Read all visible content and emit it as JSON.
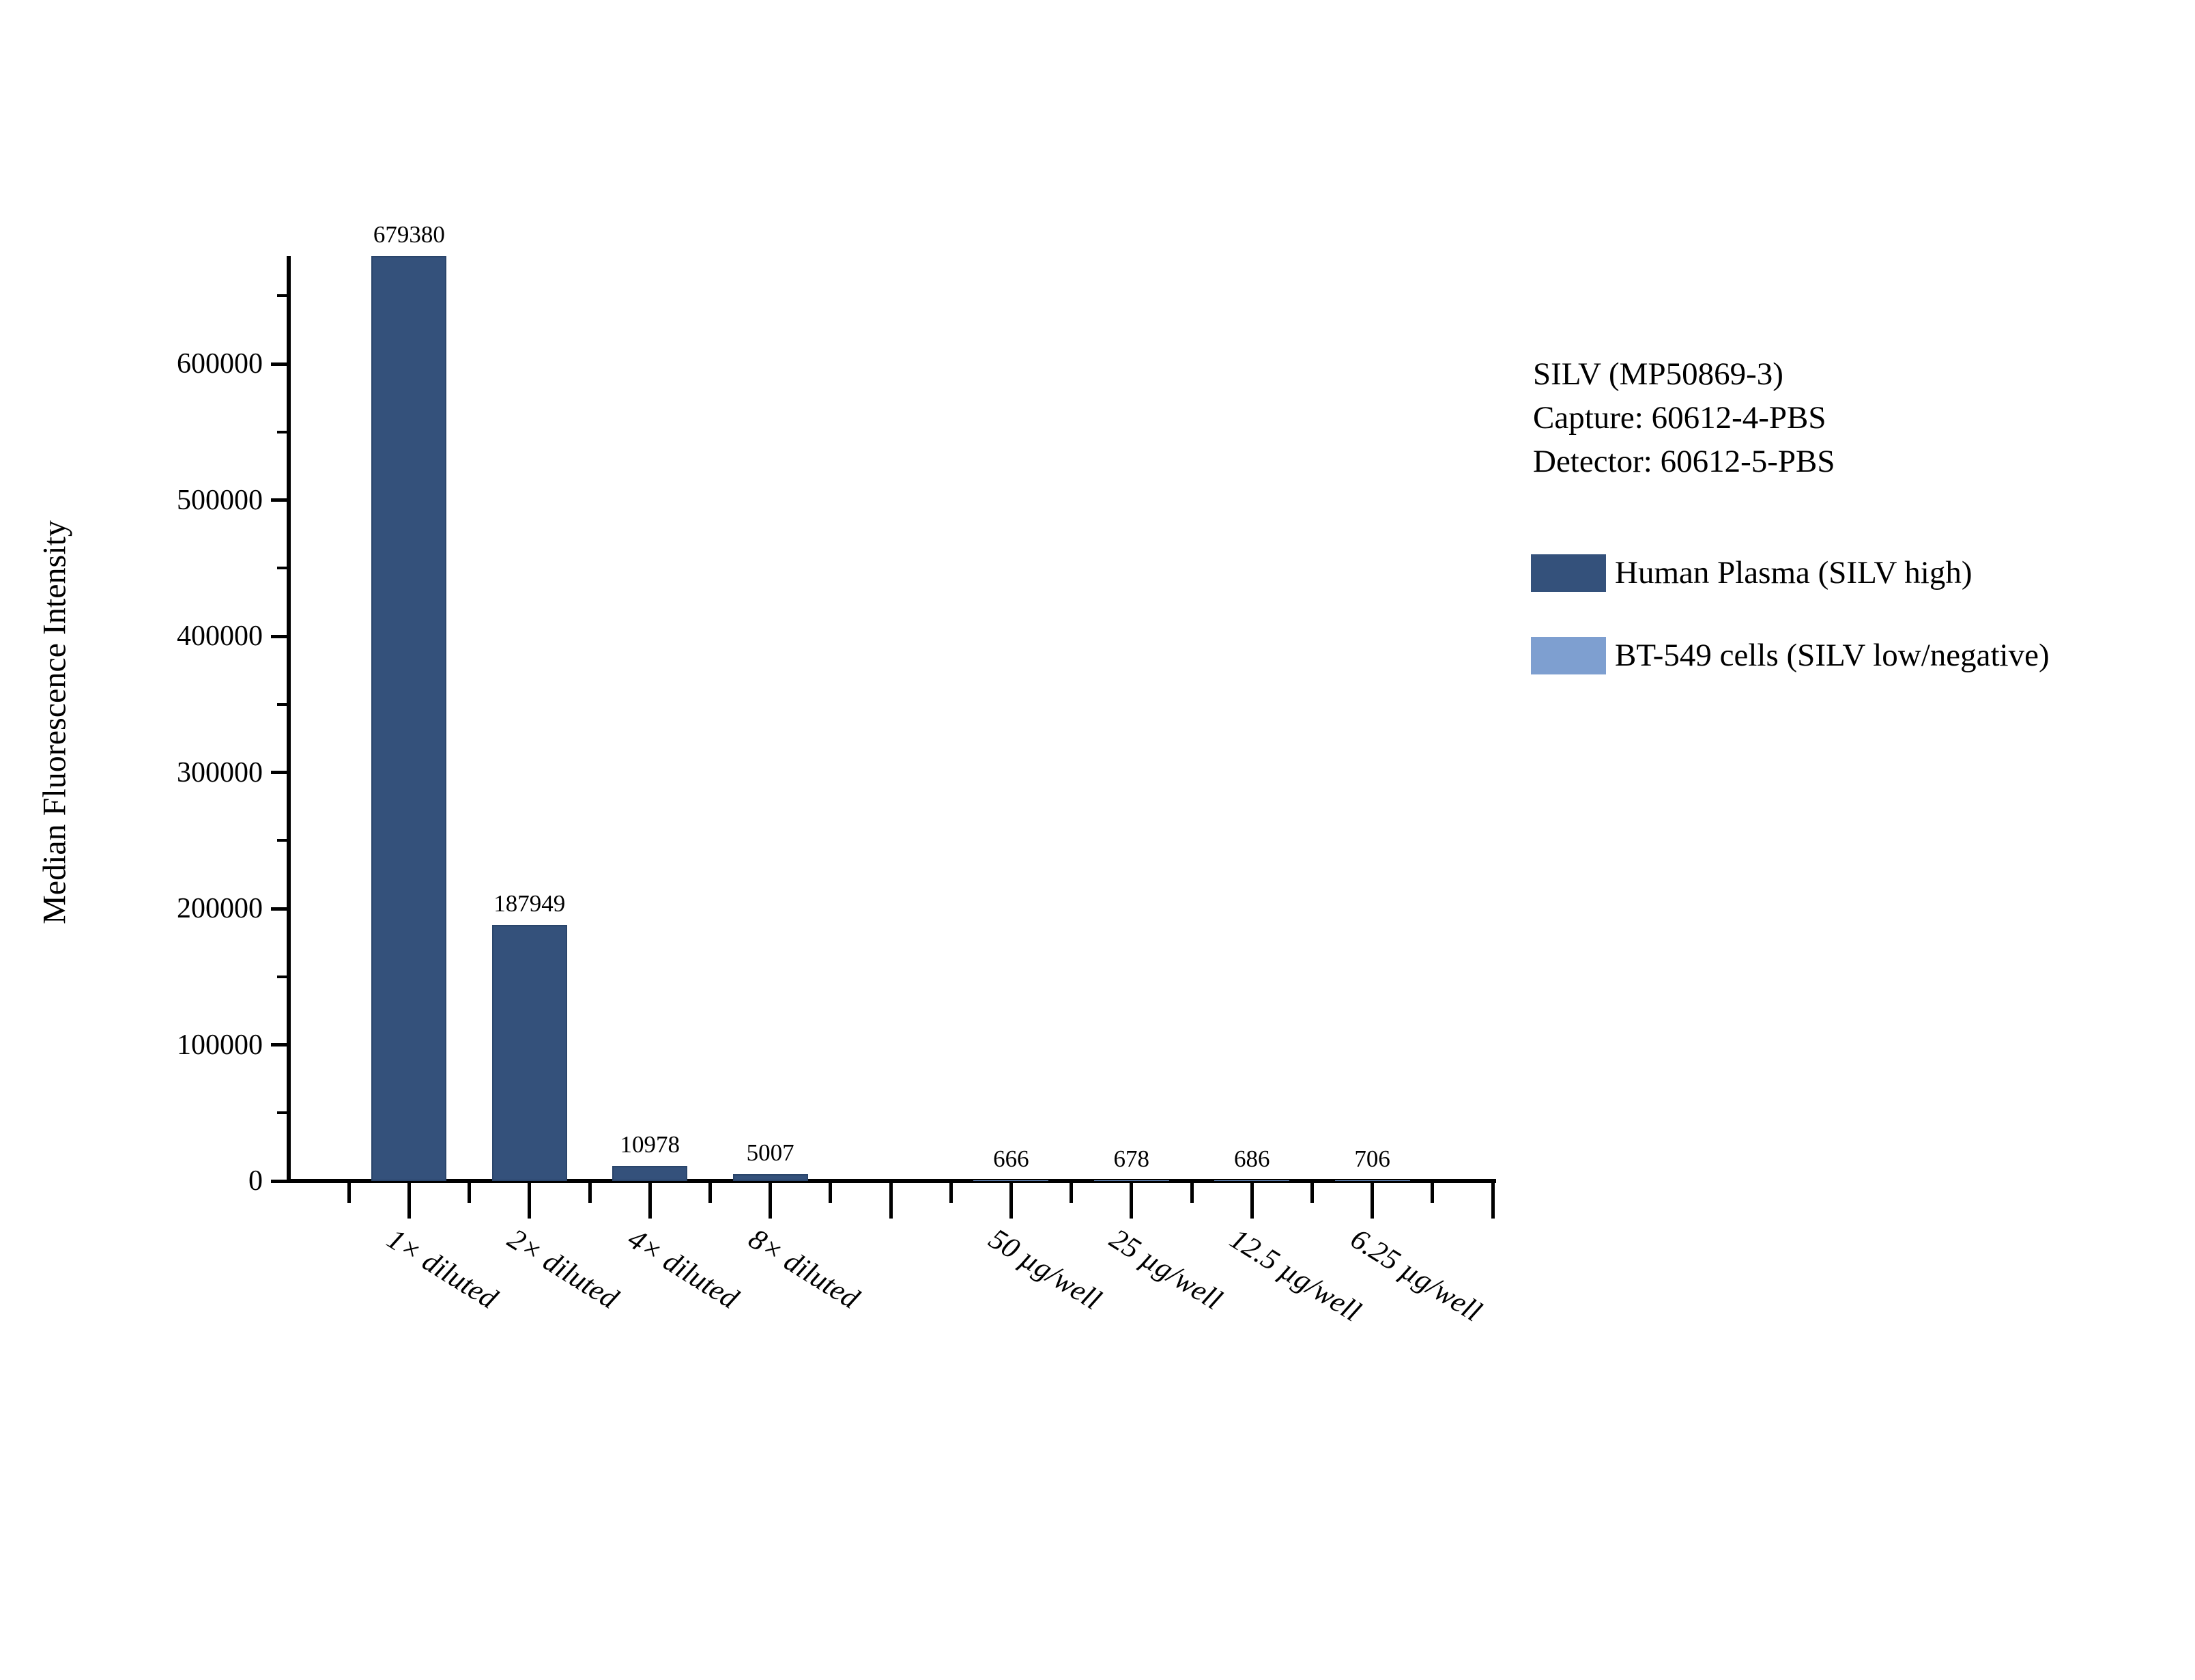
{
  "annotation": {
    "line1": "SILV (MP50869-3)",
    "line2": "Capture: 60612-4-PBS",
    "line3": "Detector: 60612-5-PBS"
  },
  "chart_data": {
    "type": "bar",
    "title": "",
    "xlabel": "",
    "ylabel": "Median Fluorescence Intensity",
    "ylim": [
      0,
      680000
    ],
    "ymajor_ticks": [
      0,
      100000,
      200000,
      300000,
      400000,
      500000,
      600000
    ],
    "yminor_ticks": [
      50000,
      150000,
      250000,
      350000,
      450000,
      550000,
      650000
    ],
    "grid": false,
    "legend_position": "right",
    "bar_value_labels_shown": true,
    "gap_slots_between_series": 1,
    "series": [
      {
        "name": "Human Plasma (SILV high)",
        "color": "#34517B",
        "edge_color": "#2A456B",
        "categories": [
          "1× diluted",
          "2× diluted",
          "4× diluted",
          "8× diluted"
        ],
        "values": [
          679380,
          187949,
          10978,
          5007
        ]
      },
      {
        "name": "BT-549 cells (SILV low/negative)",
        "color": "#7E9FD0",
        "edge_color": "#6A8FC4",
        "categories": [
          "50 µg/well",
          "25 µg/well",
          "12.5 µg/well",
          "6.25 µg/well"
        ],
        "values": [
          666,
          678,
          686,
          706
        ]
      }
    ]
  }
}
